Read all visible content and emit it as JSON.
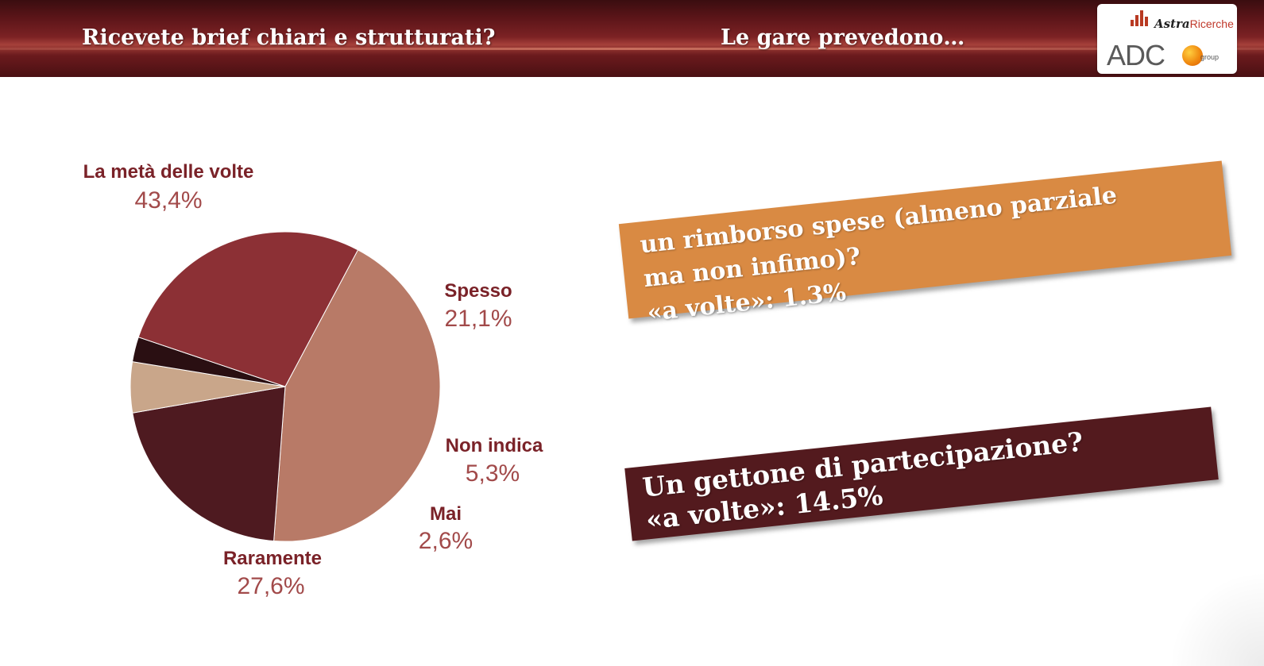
{
  "header": {
    "left_title": "Ricevete brief chiari e strutturati?",
    "right_title": "Le gare prevedono…"
  },
  "logo": {
    "astra": "Astra",
    "ricerche": "Ricerche",
    "adc": "ADC",
    "group": "group"
  },
  "chart_data": {
    "type": "pie",
    "labels": [
      "La metà delle volte",
      "Spesso",
      "Non indica",
      "Mai",
      "Raramente"
    ],
    "values": [
      43.4,
      21.1,
      5.3,
      2.6,
      27.6
    ],
    "value_labels": [
      "43,4%",
      "21,1%",
      "5,3%",
      "2,6%",
      "27,6%"
    ],
    "colors": [
      "#b87a67",
      "#4e1a20",
      "#c9a68a",
      "#2a0f12",
      "#8c3035"
    ],
    "start_angle_deg": 28,
    "direction": "clockwise",
    "legend": "none"
  },
  "cards": [
    {
      "lines": [
        "un rimborso spese (almeno parziale",
        "ma non infimo)?",
        "«a volte»: 1.3%"
      ],
      "color": "#d98a43"
    },
    {
      "lines": [
        "Un gettone di partecipazione?",
        "«a volte»: 14.5%"
      ],
      "color": "#531a1e"
    }
  ]
}
